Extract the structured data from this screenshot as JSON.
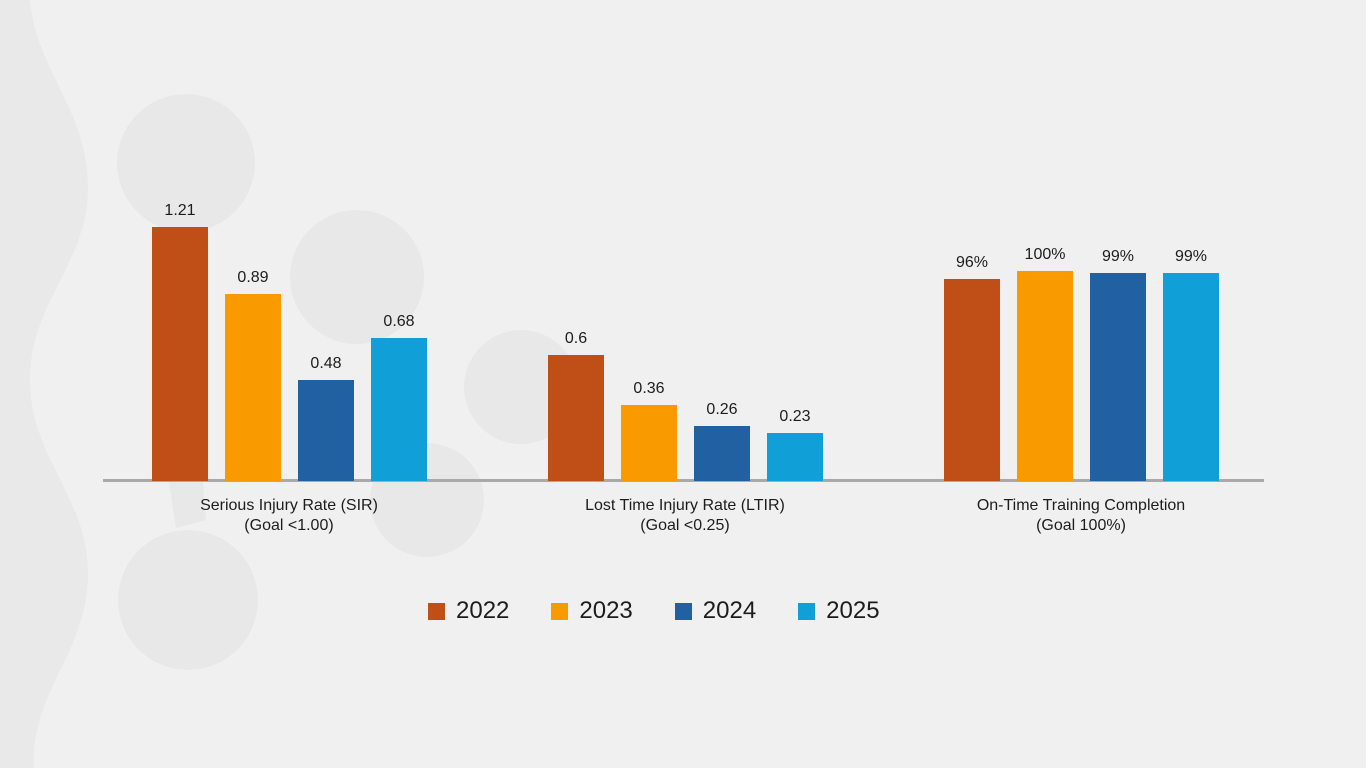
{
  "chart_data": {
    "type": "bar",
    "title": "",
    "categories": [
      {
        "title": "Serious Injury Rate (SIR)",
        "goal": "(Goal <1.00)",
        "unit": ""
      },
      {
        "title": "Lost Time Injury Rate (LTIR)",
        "goal": "(Goal <0.25)",
        "unit": ""
      },
      {
        "title": "On-Time Training Completion",
        "goal": "(Goal 100%)",
        "unit": "%"
      }
    ],
    "series": [
      {
        "name": "2022",
        "color": "#bf4f16",
        "values": [
          1.21,
          0.6,
          96
        ],
        "value_labels": [
          "1.21",
          "0.6",
          "96%"
        ]
      },
      {
        "name": "2023",
        "color": "#f99a00",
        "values": [
          0.89,
          0.36,
          100
        ],
        "value_labels": [
          "0.89",
          "0.36",
          "100%"
        ]
      },
      {
        "name": "2024",
        "color": "#2161a1",
        "values": [
          0.48,
          0.26,
          99
        ],
        "value_labels": [
          "0.48",
          "0.26",
          "99%"
        ]
      },
      {
        "name": "2025",
        "color": "#119fd8",
        "values": [
          0.68,
          0.23,
          99
        ],
        "value_labels": [
          "0.68",
          "0.23",
          "99%"
        ]
      }
    ],
    "legend": {
      "position": "bottom",
      "entries": [
        "2022",
        "2023",
        "2024",
        "2025"
      ]
    },
    "axis": {
      "baseline_color": "#a9a9a9",
      "gridlines": false,
      "value_axis_visible": false,
      "scale_note": "1.0 rate unit = 210px; percent values plotted as value/100"
    }
  },
  "colors": {
    "background": "#f0f0f0",
    "decor_blob": "#e8e8e8",
    "decor_ribbon": "#e9e9e9",
    "text": "#1c1c1c"
  }
}
